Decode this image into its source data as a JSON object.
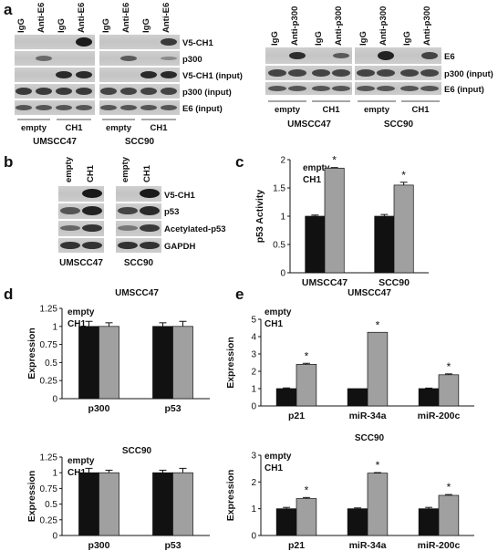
{
  "panels": {
    "a": {
      "letter": "a",
      "lane_labels_left": [
        "IgG",
        "Anti-E6",
        "IgG",
        "Anti-E6"
      ],
      "row_labels_left": [
        "V5-CH1",
        "p300",
        "V5-CH1 (input)",
        "p300 (input)",
        "E6 (input)"
      ],
      "group_labels_left": [
        "empty",
        "CH1"
      ],
      "cell_lines_left": [
        "UMSCC47",
        "SCC90"
      ],
      "lane_labels_right": [
        "IgG",
        "Anti-p300",
        "IgG",
        "Anti-p300"
      ],
      "row_labels_right": [
        "E6",
        "p300 (input)",
        "E6 (input)"
      ],
      "group_labels_right": [
        "empty",
        "CH1"
      ],
      "cell_lines_right": [
        "UMSCC47",
        "SCC90"
      ]
    },
    "b": {
      "letter": "b",
      "lane_labels": [
        "empty",
        "CH1"
      ],
      "row_labels": [
        "V5-CH1",
        "p53",
        "Acetylated-p53",
        "GAPDH"
      ],
      "cell_lines": [
        "UMSCC47",
        "SCC90"
      ]
    },
    "c": {
      "letter": "c"
    },
    "d": {
      "letter": "d"
    },
    "e": {
      "letter": "e"
    }
  },
  "chart_data": [
    {
      "id": "c",
      "type": "bar",
      "title": "",
      "legend": [
        "empty",
        "CH1"
      ],
      "legend_position": "top-left",
      "categories": [
        "UMSCC47",
        "SCC90"
      ],
      "series": [
        {
          "name": "empty",
          "values": [
            1.0,
            1.0
          ],
          "errors": [
            0.02,
            0.03
          ]
        },
        {
          "name": "CH1",
          "values": [
            1.85,
            1.55
          ],
          "errors": [
            0.01,
            0.05
          ]
        }
      ],
      "significant": [
        true,
        true
      ],
      "ylabel": "p53 Activity",
      "ylim": [
        0,
        2
      ],
      "yticks": [
        "0",
        "0.5",
        "1",
        "1.5",
        "2"
      ],
      "colors": [
        "#111111",
        "#a0a0a0"
      ]
    },
    {
      "id": "d1",
      "type": "bar",
      "title": "UMSCC47",
      "legend": [
        "empty",
        "CH1"
      ],
      "legend_position": "top-left",
      "categories": [
        "p300",
        "p53"
      ],
      "series": [
        {
          "name": "empty",
          "values": [
            1.0,
            1.0
          ],
          "errors": [
            0.07,
            0.05
          ]
        },
        {
          "name": "CH1",
          "values": [
            1.0,
            1.0
          ],
          "errors": [
            0.05,
            0.07
          ]
        }
      ],
      "significant": [
        false,
        false
      ],
      "ylabel": "Expression",
      "ylim": [
        0,
        1.25
      ],
      "yticks": [
        "0",
        "0.25",
        "0.5",
        "0.75",
        "1",
        "1.25"
      ],
      "colors": [
        "#111111",
        "#a0a0a0"
      ]
    },
    {
      "id": "d2",
      "type": "bar",
      "title": "SCC90",
      "legend": [
        "empty",
        "CH1"
      ],
      "legend_position": "top-left",
      "categories": [
        "p300",
        "p53"
      ],
      "series": [
        {
          "name": "empty",
          "values": [
            1.0,
            1.0
          ],
          "errors": [
            0.07,
            0.04
          ]
        },
        {
          "name": "CH1",
          "values": [
            1.0,
            1.0
          ],
          "errors": [
            0.04,
            0.07
          ]
        }
      ],
      "significant": [
        false,
        false
      ],
      "ylabel": "Expression",
      "ylim": [
        0,
        1.25
      ],
      "yticks": [
        "0",
        "0.25",
        "0.5",
        "0.75",
        "1",
        "1.25"
      ],
      "colors": [
        "#111111",
        "#a0a0a0"
      ]
    },
    {
      "id": "e1",
      "type": "bar",
      "title": "UMSCC47",
      "legend": [
        "empty",
        "CH1"
      ],
      "legend_position": "top-left",
      "categories": [
        "p21",
        "miR-34a",
        "miR-200c"
      ],
      "series": [
        {
          "name": "empty",
          "values": [
            1.0,
            1.0,
            1.0
          ],
          "errors": [
            0.04,
            0,
            0.03
          ]
        },
        {
          "name": "CH1",
          "values": [
            2.4,
            4.25,
            1.8
          ],
          "errors": [
            0.06,
            0,
            0.05
          ]
        }
      ],
      "significant": [
        true,
        true,
        true
      ],
      "ylabel": "Expression",
      "ylim": [
        0,
        5
      ],
      "yticks": [
        "0",
        "1",
        "2",
        "3",
        "4",
        "5"
      ],
      "colors": [
        "#111111",
        "#a0a0a0"
      ]
    },
    {
      "id": "e2",
      "type": "bar",
      "title": "SCC90",
      "legend": [
        "empty",
        "CH1"
      ],
      "legend_position": "top-left",
      "categories": [
        "p21",
        "miR-34a",
        "miR-200c"
      ],
      "series": [
        {
          "name": "empty",
          "values": [
            1.0,
            1.0,
            1.0
          ],
          "errors": [
            0.05,
            0.03,
            0.05
          ]
        },
        {
          "name": "CH1",
          "values": [
            1.38,
            2.33,
            1.5
          ],
          "errors": [
            0.04,
            0.02,
            0.03
          ]
        }
      ],
      "significant": [
        true,
        true,
        true
      ],
      "ylabel": "Expression",
      "ylim": [
        0,
        3
      ],
      "yticks": [
        "0",
        "1",
        "2",
        "3"
      ],
      "colors": [
        "#111111",
        "#a0a0a0"
      ]
    }
  ]
}
